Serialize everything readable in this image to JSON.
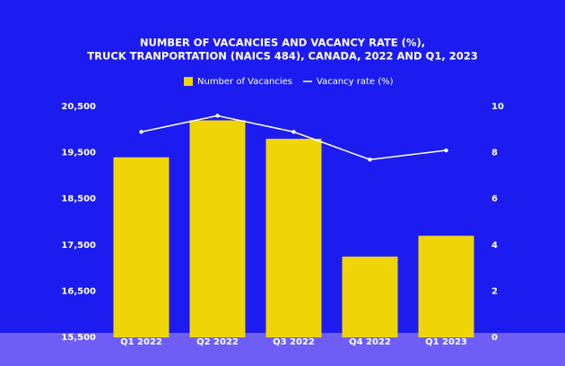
{
  "chart_data": {
    "type": "bar_line",
    "title": [
      "NUMBER OF VACANCIES AND VACANCY RATE (%),",
      "TRUCK TRANPORTATION (NAICS 484), CANADA, 2022 AND Q1, 2023"
    ],
    "categories": [
      "Q1 2022",
      "Q2 2022",
      "Q3 2022",
      "Q4 2022",
      "Q1 2023"
    ],
    "series": [
      {
        "name": "Number of Vacancies",
        "color": "#efd507",
        "values": [
          19400,
          20200,
          19800,
          17250,
          17700
        ]
      },
      {
        "name": "Vacancy rate (%)",
        "color": "#ffffff",
        "axis": "y2",
        "values": [
          8.9,
          9.6,
          8.9,
          7.7,
          8.1
        ]
      }
    ],
    "ylim": [
      15500,
      20500
    ],
    "yticks": [
      {
        "value": 15500,
        "label": "15,500"
      },
      {
        "value": 16500,
        "label": "16,500"
      },
      {
        "value": 17500,
        "label": "17,500"
      },
      {
        "value": 18500,
        "label": "18,500"
      },
      {
        "value": 19500,
        "label": "19,500"
      },
      {
        "value": 20500,
        "label": "20,500"
      }
    ],
    "y2lim": [
      0,
      10
    ],
    "y2ticks": [
      0,
      2,
      4,
      6,
      8,
      10
    ]
  }
}
